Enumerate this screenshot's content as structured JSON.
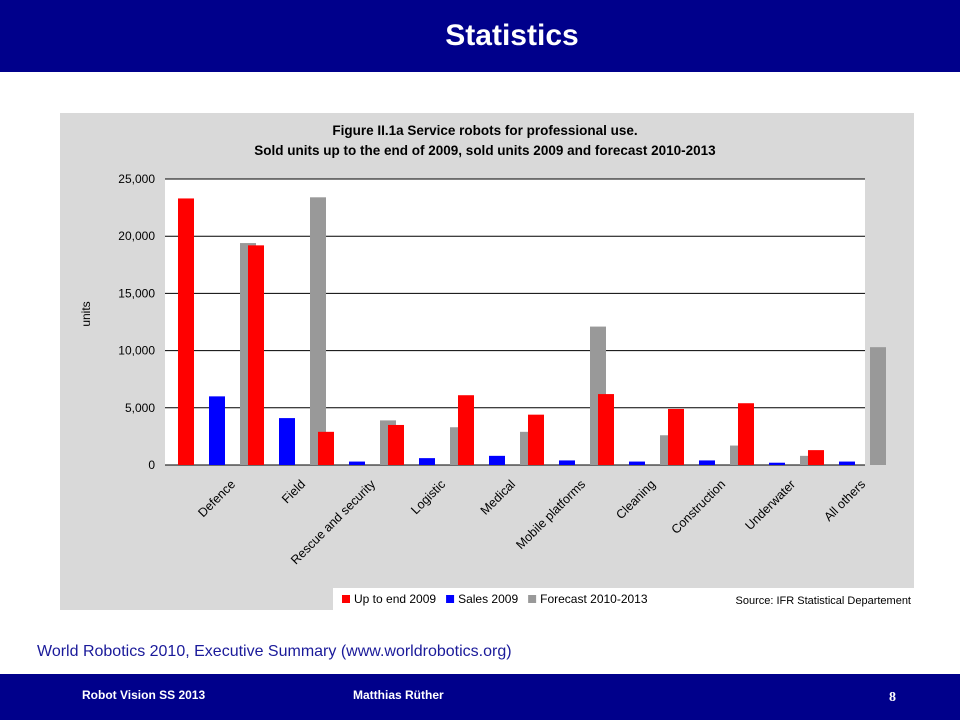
{
  "slide": {
    "title": "Statistics",
    "caption": "World Robotics 2010, Executive Summary (www.worldrobotics.org)",
    "footer_left": "Robot Vision SS 2013",
    "footer_author": "Matthias Rüther",
    "page_number": "8"
  },
  "colors": {
    "header_bg": "#00008b",
    "chart_bg": "#d9d9d9",
    "series": [
      "#ff0000",
      "#0000ff",
      "#999999"
    ]
  },
  "chart_data": {
    "type": "bar",
    "title_line1": "Figure II.1a Service robots for professional use.",
    "title_line2": "Sold units up to the end of 2009, sold units 2009 and forecast 2010-2013",
    "ylabel": "units",
    "ylim": [
      0,
      25000
    ],
    "yticks": [
      0,
      5000,
      10000,
      15000,
      20000,
      25000
    ],
    "ytick_labels": [
      "0",
      "5,000",
      "10,000",
      "15,000",
      "20,000",
      "25,000"
    ],
    "grid": true,
    "legend_position": "bottom",
    "source": "Source: IFR Statistical Departement",
    "categories": [
      "Defence",
      "Field",
      "Rescue and security",
      "Logistic",
      "Medical",
      "Mobile platforms",
      "Cleaning",
      "Construction",
      "Underwater",
      "All others"
    ],
    "series": [
      {
        "name": "Up to end 2009",
        "values": [
          23300,
          19200,
          2900,
          3500,
          6100,
          4400,
          6200,
          4900,
          5400,
          1300
        ]
      },
      {
        "name": "Sales 2009",
        "values": [
          6000,
          4100,
          300,
          600,
          800,
          400,
          300,
          400,
          200,
          300
        ]
      },
      {
        "name": "Forecast 2010-2013",
        "values": [
          19400,
          23400,
          3900,
          3300,
          2900,
          12100,
          2600,
          1700,
          800,
          10300
        ]
      }
    ]
  }
}
